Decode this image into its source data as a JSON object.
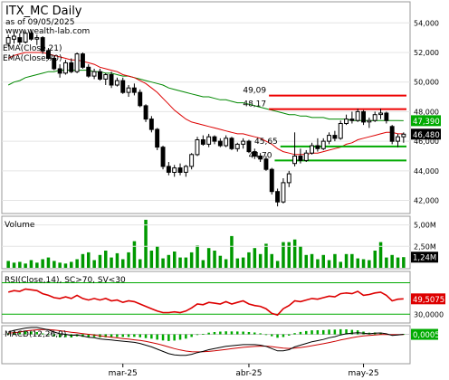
{
  "header": {
    "title": "ITX_MC Daily",
    "as_of": "as of 09/05/2025",
    "source": "www.wealth-lab.com",
    "ema21_label": "EMA(Close,21)",
    "ema70_label": "EMA(Close,70)"
  },
  "colors": {
    "bull": "#00bb00",
    "bear": "#000000",
    "ema21": "#dd0000",
    "ema70": "#008800",
    "resistance": "#ee0000",
    "support": "#00aa00",
    "volume": "#009900",
    "rsi": "#dd0000",
    "macd": "#000000",
    "signal": "#cc0000",
    "hist": "#00aa00",
    "price_tag": "#00aa00",
    "last_tag": "#000000"
  },
  "chart_data": [
    {
      "type": "candlestick",
      "panel": "price",
      "y_ticks": [
        "54,000",
        "52,000",
        "50,000",
        "48,000",
        "46,000",
        "44,000",
        "42,000"
      ],
      "ylim": [
        41.3,
        55.3
      ],
      "candles": [
        [
          52.6,
          53.2,
          52.4,
          53.0
        ],
        [
          52.9,
          53.4,
          52.6,
          53.1
        ],
        [
          53.0,
          53.3,
          52.5,
          52.7
        ],
        [
          52.7,
          53.5,
          52.6,
          53.3
        ],
        [
          53.3,
          53.5,
          52.8,
          52.9
        ],
        [
          52.9,
          53.2,
          52.5,
          53.0
        ],
        [
          53.0,
          53.1,
          51.9,
          52.1
        ],
        [
          52.1,
          52.3,
          51.5,
          51.6
        ],
        [
          51.6,
          51.8,
          50.8,
          50.9
        ],
        [
          50.9,
          51.2,
          50.3,
          50.6
        ],
        [
          50.6,
          51.5,
          50.5,
          51.3
        ],
        [
          51.3,
          51.6,
          50.6,
          50.7
        ],
        [
          50.7,
          52.0,
          50.6,
          51.9
        ],
        [
          51.9,
          52.0,
          50.9,
          51.0
        ],
        [
          51.0,
          51.2,
          50.3,
          50.4
        ],
        [
          50.4,
          50.9,
          50.2,
          50.7
        ],
        [
          50.7,
          50.9,
          50.1,
          50.2
        ],
        [
          50.2,
          50.6,
          49.8,
          50.5
        ],
        [
          50.5,
          50.7,
          49.6,
          49.8
        ],
        [
          49.8,
          50.3,
          49.7,
          50.1
        ],
        [
          50.1,
          50.3,
          49.2,
          49.3
        ],
        [
          49.3,
          49.8,
          49.0,
          49.6
        ],
        [
          49.6,
          49.9,
          49.1,
          49.3
        ],
        [
          49.3,
          49.5,
          48.3,
          48.4
        ],
        [
          48.4,
          48.5,
          47.3,
          47.5
        ],
        [
          47.5,
          47.7,
          46.6,
          46.8
        ],
        [
          46.8,
          46.9,
          45.4,
          45.6
        ],
        [
          45.6,
          45.7,
          44.1,
          44.3
        ],
        [
          44.3,
          44.6,
          43.7,
          43.9
        ],
        [
          43.9,
          44.4,
          43.6,
          44.2
        ],
        [
          44.2,
          44.5,
          43.7,
          43.9
        ],
        [
          43.9,
          44.4,
          43.6,
          44.3
        ],
        [
          44.3,
          45.2,
          44.1,
          45.1
        ],
        [
          45.1,
          46.3,
          45.0,
          46.1
        ],
        [
          46.1,
          46.4,
          45.7,
          45.8
        ],
        [
          45.8,
          46.5,
          45.6,
          46.3
        ],
        [
          46.3,
          46.4,
          45.8,
          46.0
        ],
        [
          46.0,
          46.2,
          45.6,
          45.7
        ],
        [
          45.7,
          46.4,
          45.6,
          46.2
        ],
        [
          46.2,
          46.3,
          45.4,
          45.5
        ],
        [
          45.5,
          45.9,
          45.3,
          45.8
        ],
        [
          45.8,
          46.2,
          45.5,
          46.0
        ],
        [
          46.0,
          46.1,
          45.2,
          45.3
        ],
        [
          45.3,
          45.5,
          44.8,
          45.0
        ],
        [
          45.0,
          45.2,
          44.6,
          44.8
        ],
        [
          44.8,
          45.0,
          44.0,
          44.1
        ],
        [
          44.1,
          44.2,
          42.4,
          42.6
        ],
        [
          42.6,
          42.8,
          41.6,
          41.9
        ],
        [
          41.9,
          43.5,
          41.8,
          43.2
        ],
        [
          43.2,
          44.0,
          42.9,
          43.8
        ],
        [
          44.5,
          46.6,
          44.3,
          45.0
        ],
        [
          45.0,
          45.5,
          44.5,
          44.7
        ],
        [
          44.7,
          45.4,
          44.6,
          45.2
        ],
        [
          45.2,
          45.9,
          45.1,
          45.7
        ],
        [
          45.7,
          46.2,
          45.3,
          45.5
        ],
        [
          45.5,
          46.2,
          45.4,
          46.0
        ],
        [
          46.0,
          46.6,
          45.8,
          46.4
        ],
        [
          46.4,
          46.7,
          46.0,
          46.2
        ],
        [
          46.2,
          47.4,
          46.1,
          47.2
        ],
        [
          47.2,
          47.8,
          47.1,
          47.5
        ],
        [
          47.5,
          48.0,
          47.2,
          47.4
        ],
        [
          47.4,
          48.2,
          47.3,
          48.0
        ],
        [
          48.0,
          48.1,
          47.1,
          47.3
        ],
        [
          47.3,
          47.6,
          46.9,
          47.4
        ],
        [
          47.4,
          48.0,
          47.3,
          47.8
        ],
        [
          47.8,
          48.2,
          47.5,
          47.9
        ],
        [
          47.9,
          48.0,
          47.2,
          47.4
        ],
        [
          47.0,
          47.1,
          45.8,
          46.0
        ],
        [
          46.0,
          46.5,
          45.6,
          46.3
        ],
        [
          46.3,
          46.6,
          45.9,
          46.48
        ]
      ],
      "ema21": [
        51.6,
        51.8,
        51.9,
        52.0,
        52.0,
        52.0,
        52.0,
        51.9,
        51.8,
        51.7,
        51.6,
        51.5,
        51.5,
        51.4,
        51.3,
        51.2,
        51.0,
        50.9,
        50.8,
        50.7,
        50.5,
        50.4,
        50.3,
        50.1,
        49.9,
        49.6,
        49.3,
        48.9,
        48.5,
        48.1,
        47.8,
        47.5,
        47.3,
        47.2,
        47.1,
        47.0,
        46.9,
        46.8,
        46.7,
        46.6,
        46.5,
        46.5,
        46.4,
        46.3,
        46.2,
        46.0,
        45.8,
        45.5,
        45.3,
        45.2,
        45.1,
        45.1,
        45.1,
        45.2,
        45.2,
        45.3,
        45.4,
        45.5,
        45.6,
        45.8,
        45.9,
        46.1,
        46.2,
        46.3,
        46.4,
        46.5,
        46.6,
        46.6,
        46.5,
        46.5
      ],
      "ema70": [
        49.8,
        50.0,
        50.1,
        50.3,
        50.4,
        50.5,
        50.6,
        50.7,
        50.7,
        50.8,
        50.8,
        50.8,
        50.8,
        50.8,
        50.8,
        50.7,
        50.7,
        50.6,
        50.6,
        50.5,
        50.4,
        50.4,
        50.3,
        50.2,
        50.1,
        50.0,
        49.9,
        49.8,
        49.6,
        49.5,
        49.4,
        49.3,
        49.2,
        49.1,
        49.0,
        49.0,
        48.9,
        48.8,
        48.8,
        48.7,
        48.6,
        48.6,
        48.5,
        48.4,
        48.3,
        48.2,
        48.1,
        48.0,
        47.9,
        47.8,
        47.8,
        47.7,
        47.7,
        47.6,
        47.6,
        47.6,
        47.5,
        47.5,
        47.5,
        47.5,
        47.4,
        47.4,
        47.4,
        47.4,
        47.4,
        47.4,
        47.4,
        47.4,
        47.4,
        47.39
      ],
      "levels": [
        {
          "label": "49,09",
          "value": 49.09,
          "kind": "resistance"
        },
        {
          "label": "48,17",
          "value": 48.17,
          "kind": "resistance"
        },
        {
          "label": "45,65",
          "value": 45.65,
          "kind": "support"
        },
        {
          "label": "44,70",
          "value": 44.7,
          "kind": "support"
        }
      ],
      "price_tags": [
        {
          "label": "47,390",
          "value": 47.39,
          "style": "ema70"
        },
        {
          "label": "46,480",
          "value": 46.48,
          "style": "last"
        }
      ]
    },
    {
      "type": "bar",
      "panel": "volume",
      "label": "Volume",
      "y_ticks": [
        "5,00M",
        "2,50M"
      ],
      "last_tag": "1,24M",
      "ylim": [
        0,
        5.8
      ],
      "values": [
        0.8,
        0.6,
        0.7,
        0.5,
        0.9,
        0.6,
        1.0,
        1.2,
        0.8,
        0.6,
        0.5,
        0.7,
        1.0,
        1.6,
        1.8,
        0.9,
        1.5,
        2.0,
        1.2,
        1.7,
        1.0,
        1.8,
        3.1,
        1.0,
        5.6,
        2.0,
        2.5,
        1.1,
        1.5,
        1.9,
        1.2,
        1.2,
        1.8,
        2.6,
        0.9,
        2.3,
        2.0,
        1.4,
        1.0,
        3.7,
        1.1,
        1.2,
        1.8,
        2.3,
        1.6,
        2.8,
        1.6,
        0.8,
        3.0,
        3.0,
        3.3,
        2.5,
        1.5,
        1.6,
        1.0,
        1.5,
        0.9,
        1.6,
        0.7,
        1.6,
        1.6,
        1.1,
        1.0,
        0.9,
        2.0,
        3.0,
        1.2,
        1.5,
        1.2,
        1.24
      ]
    },
    {
      "type": "line",
      "panel": "rsi",
      "label": "RSI(Close,14), SC>70, SV<30",
      "y_ticks": [
        "30,0000"
      ],
      "last_tag": "49,5075",
      "ylim": [
        20,
        82
      ],
      "bands": [
        70,
        30
      ],
      "values": [
        58,
        60,
        59,
        62,
        61,
        60,
        56,
        54,
        51,
        50,
        52,
        50,
        54,
        50,
        48,
        50,
        48,
        50,
        47,
        48,
        45,
        47,
        46,
        43,
        40,
        37,
        34,
        32,
        32,
        33,
        32,
        34,
        38,
        43,
        42,
        45,
        44,
        43,
        46,
        43,
        45,
        47,
        43,
        41,
        40,
        37,
        31,
        29,
        37,
        41,
        47,
        46,
        48,
        50,
        49,
        51,
        53,
        52,
        56,
        57,
        56,
        59,
        54,
        55,
        57,
        58,
        54,
        47,
        49,
        49.5
      ]
    },
    {
      "type": "line",
      "panel": "macd",
      "label": "MACD(12,26,9)",
      "last_tag": "0,0005",
      "ylim": [
        -2.5,
        0.6
      ],
      "x_ticks": [
        {
          "label": "mar-25",
          "index": 20
        },
        {
          "label": "abr-25",
          "index": 42
        },
        {
          "label": "may-25",
          "index": 62
        }
      ],
      "macd": [
        0.2,
        0.35,
        0.45,
        0.55,
        0.6,
        0.6,
        0.5,
        0.4,
        0.2,
        0.05,
        0.0,
        -0.1,
        -0.05,
        -0.15,
        -0.25,
        -0.3,
        -0.4,
        -0.45,
        -0.5,
        -0.55,
        -0.6,
        -0.65,
        -0.7,
        -0.8,
        -0.95,
        -1.1,
        -1.3,
        -1.5,
        -1.7,
        -1.8,
        -1.85,
        -1.85,
        -1.75,
        -1.6,
        -1.5,
        -1.35,
        -1.25,
        -1.15,
        -1.05,
        -1.0,
        -0.95,
        -0.9,
        -0.9,
        -0.9,
        -0.95,
        -1.05,
        -1.25,
        -1.45,
        -1.45,
        -1.35,
        -1.1,
        -0.95,
        -0.8,
        -0.65,
        -0.55,
        -0.45,
        -0.3,
        -0.2,
        -0.05,
        0.05,
        0.1,
        0.15,
        0.1,
        0.05,
        0.1,
        0.12,
        0.05,
        -0.1,
        -0.05,
        0.0005
      ],
      "signal": [
        0.1,
        0.15,
        0.2,
        0.3,
        0.35,
        0.4,
        0.42,
        0.42,
        0.38,
        0.32,
        0.25,
        0.18,
        0.13,
        0.07,
        0.0,
        -0.06,
        -0.13,
        -0.19,
        -0.25,
        -0.31,
        -0.37,
        -0.42,
        -0.48,
        -0.54,
        -0.62,
        -0.72,
        -0.83,
        -0.96,
        -1.11,
        -1.25,
        -1.37,
        -1.47,
        -1.52,
        -1.54,
        -1.53,
        -1.5,
        -1.45,
        -1.39,
        -1.32,
        -1.26,
        -1.2,
        -1.14,
        -1.1,
        -1.06,
        -1.04,
        -1.04,
        -1.08,
        -1.15,
        -1.21,
        -1.24,
        -1.21,
        -1.16,
        -1.09,
        -1.0,
        -0.91,
        -0.82,
        -0.72,
        -0.62,
        -0.5,
        -0.39,
        -0.29,
        -0.2,
        -0.14,
        -0.1,
        -0.06,
        -0.02,
        -0.01,
        -0.03,
        -0.03,
        -0.02
      ]
    }
  ]
}
